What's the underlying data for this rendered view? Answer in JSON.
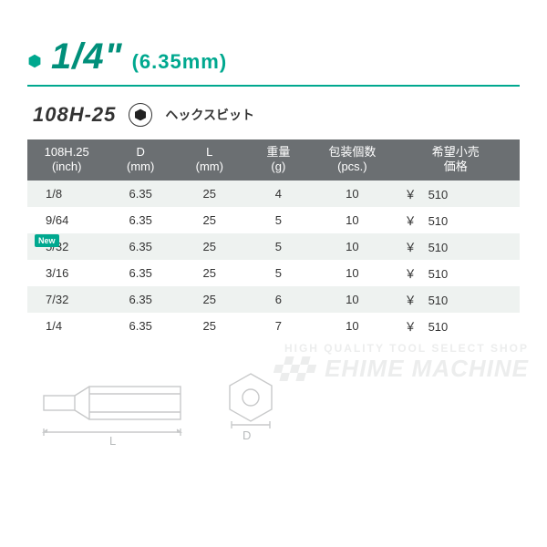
{
  "colors": {
    "brand": "#00a88f",
    "brand_dark": "#008f7a",
    "header_bg": "#6b6f72",
    "row_alt": "#eef2f0",
    "row_base": "#ffffff",
    "text": "#333333",
    "watermark": "#eceded",
    "new_badge": "#00a88f"
  },
  "heading": {
    "size_main": "1/4\"",
    "size_sub": "(6.35mm)",
    "main_fontsize": 40,
    "sub_fontsize": 22,
    "bullet_size": 14
  },
  "product": {
    "code": "108H-25",
    "code_fontsize": 22,
    "label": "ヘックスビット",
    "label_fontsize": 14,
    "hex_icon_size": 14
  },
  "table": {
    "columns": [
      {
        "line1": "108H.25",
        "line2": "(inch)",
        "width": "16%"
      },
      {
        "line1": "D",
        "line2": "(mm)",
        "width": "14%"
      },
      {
        "line1": "L",
        "line2": "(mm)",
        "width": "14%"
      },
      {
        "line1": "重量",
        "line2": "(g)",
        "width": "14%"
      },
      {
        "line1": "包装個数",
        "line2": "(pcs.)",
        "width": "16%"
      },
      {
        "line1": "希望小売",
        "line2": "価格",
        "width": "26%"
      }
    ],
    "rows": [
      {
        "size": "1/8",
        "d": "6.35",
        "l": "25",
        "w": "4",
        "pcs": "10",
        "price": "510",
        "new": false
      },
      {
        "size": "9/64",
        "d": "6.35",
        "l": "25",
        "w": "5",
        "pcs": "10",
        "price": "510",
        "new": false
      },
      {
        "size": "5/32",
        "d": "6.35",
        "l": "25",
        "w": "5",
        "pcs": "10",
        "price": "510",
        "new": true
      },
      {
        "size": "3/16",
        "d": "6.35",
        "l": "25",
        "w": "5",
        "pcs": "10",
        "price": "510",
        "new": false
      },
      {
        "size": "7/32",
        "d": "6.35",
        "l": "25",
        "w": "6",
        "pcs": "10",
        "price": "510",
        "new": false
      },
      {
        "size": "1/4",
        "d": "6.35",
        "l": "25",
        "w": "7",
        "pcs": "10",
        "price": "510",
        "new": false
      }
    ],
    "currency": "￥",
    "new_label": "New"
  },
  "diagram": {
    "L_label": "L",
    "D_label": "D"
  },
  "watermark": {
    "small": "HIGH QUALITY TOOL SELECT SHOP",
    "big": "EHIME MACHINE"
  }
}
